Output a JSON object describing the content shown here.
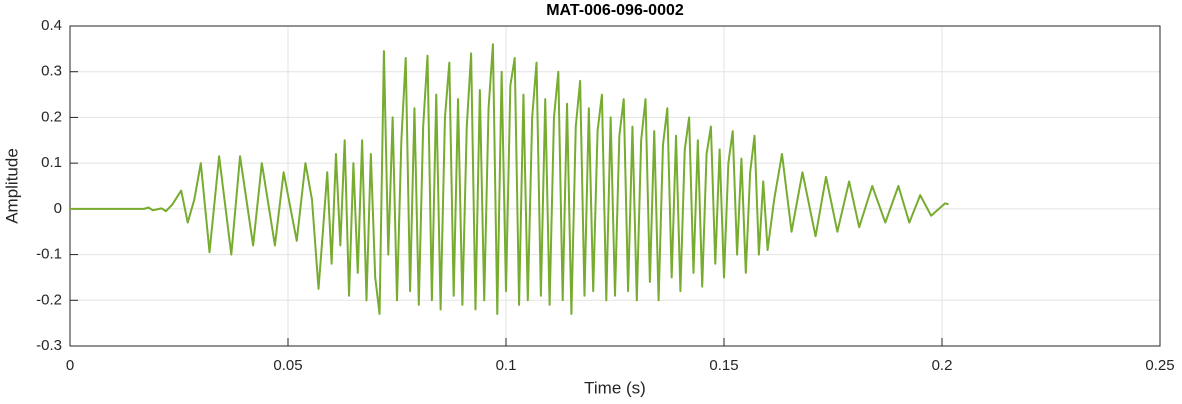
{
  "chart_data": {
    "type": "line",
    "title": "MAT-006-096-0002",
    "x_label": "Time (s)",
    "y_label": "Amplitude",
    "xlim": [
      0,
      0.25
    ],
    "ylim": [
      -0.3,
      0.4
    ],
    "xticks": [
      0,
      0.05,
      0.1,
      0.15,
      0.2,
      0.25
    ],
    "yticks": [
      -0.3,
      -0.2,
      -0.1,
      0,
      0.1,
      0.2,
      0.3,
      0.4
    ],
    "grid": true,
    "series": [
      {
        "color": "#77ac30",
        "x": [
          0,
          0.01,
          0.017,
          0.018,
          0.019,
          0.021,
          0.022,
          0.0235,
          0.0255,
          0.027,
          0.0285,
          0.03,
          0.032,
          0.0342,
          0.037,
          0.039,
          0.042,
          0.044,
          0.047,
          0.049,
          0.052,
          0.054,
          0.0555,
          0.057,
          0.058,
          0.059,
          0.06,
          0.061,
          0.062,
          0.063,
          0.064,
          0.065,
          0.066,
          0.067,
          0.068,
          0.069,
          0.07,
          0.071,
          0.072,
          0.073,
          0.074,
          0.075,
          0.076,
          0.077,
          0.078,
          0.079,
          0.08,
          0.081,
          0.082,
          0.083,
          0.084,
          0.085,
          0.086,
          0.087,
          0.088,
          0.089,
          0.09,
          0.091,
          0.092,
          0.093,
          0.094,
          0.095,
          0.096,
          0.097,
          0.098,
          0.099,
          0.1,
          0.101,
          0.102,
          0.103,
          0.104,
          0.105,
          0.106,
          0.107,
          0.108,
          0.109,
          0.11,
          0.111,
          0.112,
          0.113,
          0.114,
          0.115,
          0.116,
          0.117,
          0.118,
          0.119,
          0.12,
          0.121,
          0.122,
          0.123,
          0.124,
          0.125,
          0.126,
          0.127,
          0.128,
          0.129,
          0.13,
          0.131,
          0.132,
          0.133,
          0.134,
          0.135,
          0.136,
          0.137,
          0.138,
          0.139,
          0.14,
          0.141,
          0.142,
          0.143,
          0.144,
          0.145,
          0.146,
          0.147,
          0.148,
          0.149,
          0.15,
          0.151,
          0.152,
          0.153,
          0.154,
          0.155,
          0.156,
          0.157,
          0.158,
          0.159,
          0.16,
          0.1615,
          0.1633,
          0.1655,
          0.168,
          0.171,
          0.1734,
          0.176,
          0.1787,
          0.181,
          0.184,
          0.187,
          0.19,
          0.1925,
          0.195,
          0.1975,
          0.2007,
          0.2015
        ],
        "values": [
          0,
          0,
          0,
          0.003,
          -0.003,
          0.001,
          -0.005,
          0.01,
          0.04,
          -0.03,
          0.02,
          0.1,
          -0.095,
          0.115,
          -0.1,
          0.115,
          -0.08,
          0.1,
          -0.08,
          0.08,
          -0.07,
          0.1,
          0.02,
          -0.175,
          -0.05,
          0.08,
          -0.12,
          0.12,
          -0.08,
          0.15,
          -0.19,
          0.1,
          -0.14,
          0.15,
          -0.2,
          0.12,
          -0.15,
          -0.23,
          0.345,
          -0.1,
          0.2,
          -0.2,
          0.15,
          0.33,
          -0.18,
          0.22,
          -0.21,
          0.18,
          0.335,
          -0.2,
          0.25,
          -0.22,
          0.2,
          0.32,
          -0.19,
          0.24,
          -0.21,
          0.18,
          0.34,
          -0.22,
          0.26,
          -0.2,
          0.22,
          0.36,
          -0.23,
          0.3,
          -0.18,
          0.27,
          0.33,
          -0.21,
          0.25,
          -0.2,
          0.2,
          0.32,
          -0.19,
          0.24,
          -0.21,
          0.2,
          0.3,
          -0.2,
          0.23,
          -0.23,
          0.18,
          0.28,
          -0.19,
          0.22,
          -0.18,
          0.17,
          0.25,
          -0.2,
          0.2,
          -0.19,
          0.16,
          0.24,
          -0.18,
          0.18,
          -0.2,
          0.15,
          0.24,
          -0.16,
          0.17,
          -0.2,
          0.14,
          0.22,
          -0.15,
          0.16,
          -0.18,
          0.13,
          0.2,
          -0.14,
          0.15,
          -0.17,
          0.12,
          0.18,
          -0.12,
          0.13,
          -0.15,
          0.1,
          0.17,
          -0.1,
          0.11,
          -0.14,
          0.08,
          0.16,
          -0.1,
          0.06,
          -0.09,
          0.02,
          0.12,
          -0.05,
          0.08,
          -0.06,
          0.07,
          -0.05,
          0.06,
          -0.04,
          0.05,
          -0.03,
          0.05,
          -0.03,
          0.03,
          -0.015,
          0.012,
          0.01
        ]
      }
    ]
  }
}
